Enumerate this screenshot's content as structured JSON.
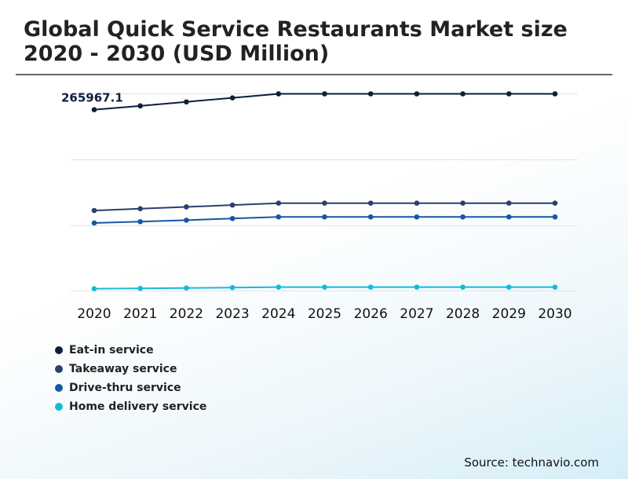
{
  "title": "Global Quick Service Restaurants Market size 2020 - 2030 (USD Million)",
  "source": "Source: technavio.com",
  "chart_data": {
    "type": "line",
    "title": "Global Quick Service Restaurants Market size 2020 - 2030 (USD Million)",
    "xlabel": "",
    "ylabel": "",
    "categories": [
      "2020",
      "2021",
      "2022",
      "2023",
      "2024",
      "2025",
      "2026",
      "2027",
      "2028",
      "2029",
      "2030"
    ],
    "annotation": {
      "series": 0,
      "index": 0,
      "text": "265967.1"
    },
    "ylim": [
      0,
      320000
    ],
    "grid": true,
    "legend_position": "bottom-left",
    "series": [
      {
        "name": "Eat-in service",
        "color": "#0d1f3c",
        "values": [
          265967.1,
          271500,
          277400,
          283300,
          289200,
          289200,
          289200,
          289200,
          289200,
          289200,
          289200
        ]
      },
      {
        "name": "Takeaway service",
        "color": "#2b3f6e",
        "values": [
          118000,
          120600,
          123300,
          126000,
          128800,
          128800,
          128800,
          128800,
          128800,
          128800,
          128800
        ]
      },
      {
        "name": "Drive-thru service",
        "color": "#1457a6",
        "values": [
          99700,
          101600,
          103800,
          106200,
          108600,
          108600,
          108600,
          108600,
          108600,
          108600,
          108600
        ]
      },
      {
        "name": "Home delivery service",
        "color": "#12bcd9",
        "values": [
          3200,
          3700,
          4300,
          4900,
          5600,
          5600,
          5600,
          5600,
          5600,
          5600,
          5600
        ]
      }
    ]
  }
}
